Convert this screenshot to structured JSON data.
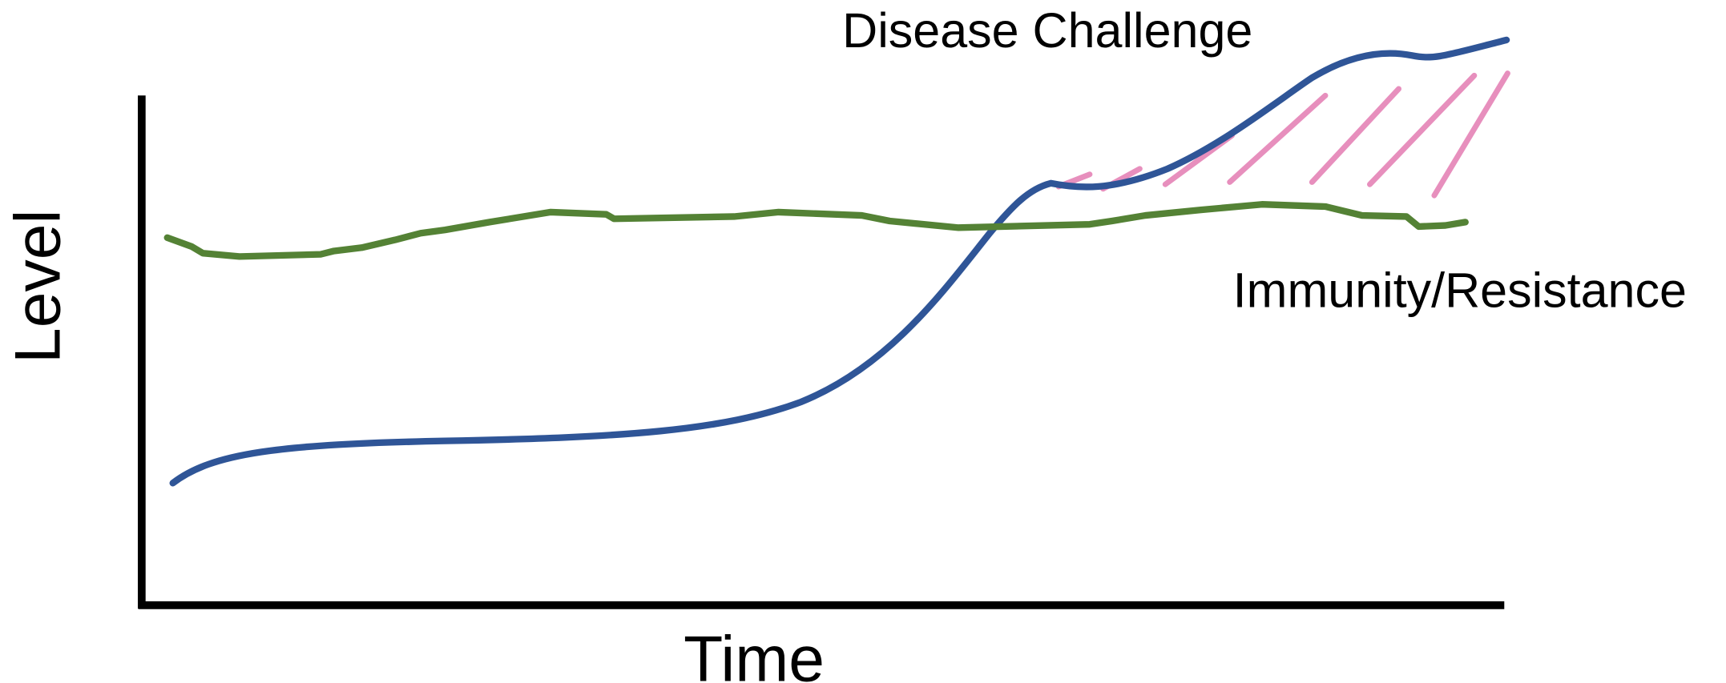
{
  "title": "Disease Challenge",
  "line_label": "Immunity/Resistance",
  "axes": {
    "x_label": "Time",
    "y_label": "Level"
  }
}
